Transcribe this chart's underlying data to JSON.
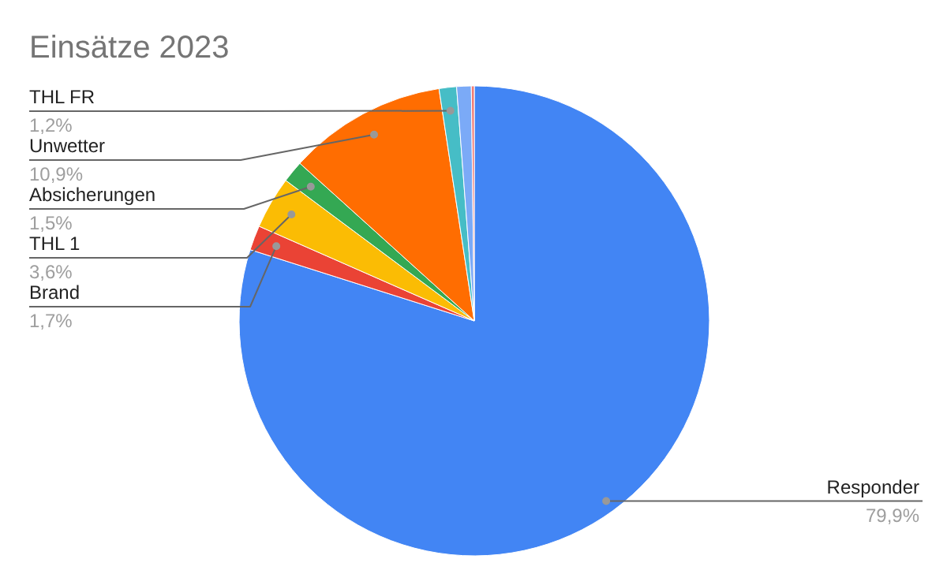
{
  "chart_data": {
    "type": "pie",
    "title": "Einsätze 2023",
    "categories": [
      "Responder",
      "Brand",
      "THL 1",
      "Absicherungen",
      "Unwetter",
      "THL FR",
      null,
      null
    ],
    "values": [
      79.9,
      1.7,
      3.6,
      1.5,
      10.9,
      1.2,
      1.0,
      0.2
    ],
    "value_labels": [
      "79,9%",
      "1,7%",
      "3,6%",
      "1,5%",
      "10,9%",
      "1,2%",
      null,
      null
    ],
    "colors": [
      "#4285f4",
      "#ea4335",
      "#fbbc04",
      "#34a853",
      "#ff6d01",
      "#46bdc6",
      "#7baaf7",
      "#f07b72"
    ]
  }
}
